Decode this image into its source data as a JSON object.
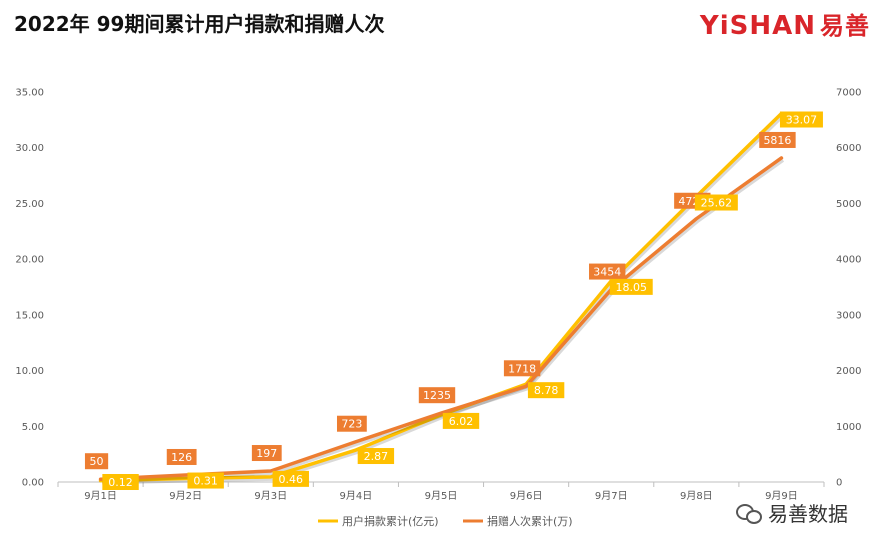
{
  "header": {
    "title": "2022年 99期间累计用户捐款和捐赠人次",
    "brand": "YiSHAN",
    "brand_cn": "易善"
  },
  "watermark": {
    "text": "易善数据",
    "icon": "wechat-icon"
  },
  "colors": {
    "amount": "#ffc000",
    "count": "#ed7d31",
    "label_text": "#ffffff"
  },
  "chart_data": {
    "type": "line",
    "categories": [
      "9月1日",
      "9月2日",
      "9月3日",
      "9月4日",
      "9月5日",
      "9月6日",
      "9月7日",
      "9月8日",
      "9月9日"
    ],
    "series": [
      {
        "name": "用户捐款累计(亿元)",
        "axis": "left",
        "values": [
          0.12,
          0.31,
          0.46,
          2.87,
          6.02,
          8.78,
          18.05,
          25.62,
          33.07
        ],
        "labels": [
          "0.12",
          "0.31",
          "0.46",
          "2.87",
          "6.02",
          "8.78",
          "18.05",
          "25.62",
          "33.07"
        ]
      },
      {
        "name": "捐赠人次累计(万)",
        "axis": "right",
        "values": [
          50,
          126,
          197,
          723,
          1235,
          1718,
          3454,
          4725,
          5816
        ],
        "labels": [
          "50",
          "126",
          "197",
          "723",
          "1235",
          "1718",
          "3454",
          "4725",
          "5816"
        ]
      }
    ],
    "y_left": {
      "min": 0,
      "max": 35,
      "step": 5,
      "ticks": [
        "0.00",
        "5.00",
        "10.00",
        "15.00",
        "20.00",
        "25.00",
        "30.00",
        "35.00"
      ]
    },
    "y_right": {
      "min": 0,
      "max": 7000,
      "step": 1000,
      "ticks": [
        "0",
        "1000",
        "2000",
        "3000",
        "4000",
        "5000",
        "6000",
        "7000"
      ]
    },
    "grid": false,
    "legend": "bottom"
  }
}
